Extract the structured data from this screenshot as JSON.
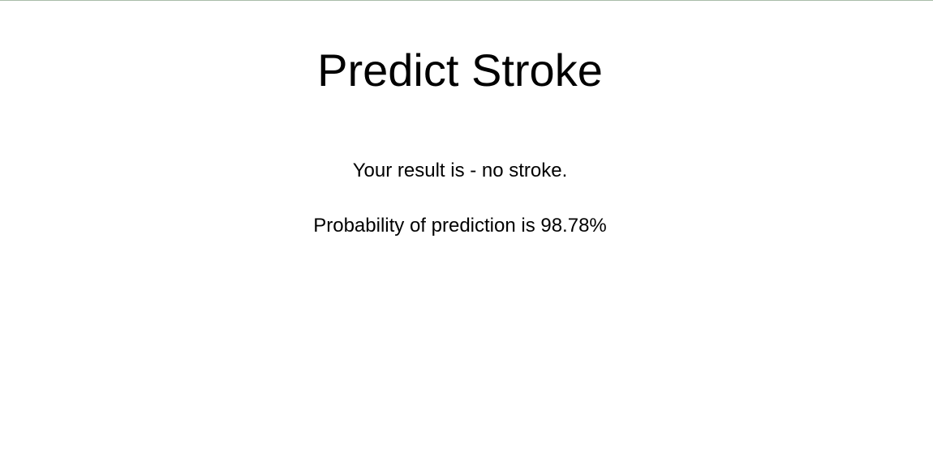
{
  "header": {
    "title": "Predict Stroke"
  },
  "result": {
    "result_line": "Your result is - no stroke.",
    "probability_line": "Probability of prediction is 98.78%"
  },
  "colors": {
    "top_border": "#a9bca9",
    "background": "#ffffff",
    "text": "#000000"
  }
}
